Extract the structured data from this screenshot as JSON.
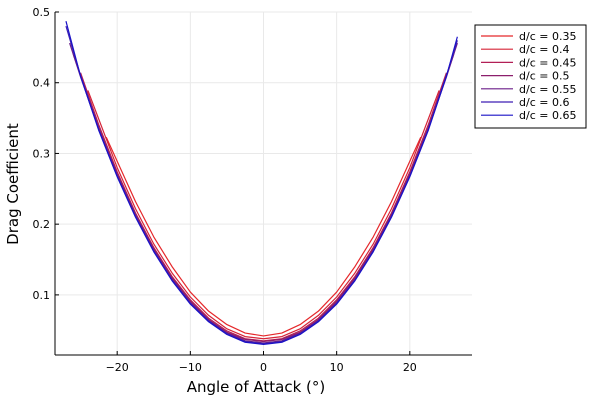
{
  "chart_data": {
    "type": "line",
    "title": "",
    "xlabel": "Angle of Attack (°)",
    "ylabel": "Drag Coefficient",
    "xlim": [
      -28.5,
      28.5
    ],
    "ylim": [
      0.015,
      0.5
    ],
    "x_ticks": [
      -20,
      -10,
      0,
      10,
      20
    ],
    "x_tick_labels": [
      "−20",
      "−10",
      "0",
      "10",
      "20"
    ],
    "y_ticks": [
      0.1,
      0.2,
      0.3,
      0.4,
      0.5
    ],
    "y_tick_labels": [
      "0.1",
      "0.2",
      "0.3",
      "0.4",
      "0.5"
    ],
    "grid": true,
    "legend_position": "outer-top-right",
    "x": [
      -27,
      -25,
      -22.5,
      -20,
      -17.5,
      -15,
      -12.5,
      -10,
      -7.5,
      -5,
      -2.5,
      0,
      2.5,
      5,
      7.5,
      10,
      12.5,
      15,
      17.5,
      20,
      22.5,
      25,
      26.5
    ],
    "series": [
      {
        "name": "d/c = 0.35",
        "color": "#e5282b",
        "x": [
          -21.5,
          -20,
          -17.5,
          -15,
          -12.5,
          -10,
          -7.5,
          -5,
          -2.5,
          0,
          2.5,
          5,
          7.5,
          10,
          12.5,
          15,
          17.5,
          20,
          21.5
        ],
        "values": [
          0.323,
          0.289,
          0.232,
          0.182,
          0.14,
          0.104,
          0.077,
          0.058,
          0.046,
          0.042,
          0.046,
          0.058,
          0.077,
          0.104,
          0.14,
          0.182,
          0.232,
          0.289,
          0.323
        ]
      },
      {
        "name": "d/c = 0.4",
        "color": "#d62437",
        "x": [
          -24,
          -22.5,
          -20,
          -17.5,
          -15,
          -12.5,
          -10,
          -7.5,
          -5,
          -2.5,
          0,
          2.5,
          5,
          7.5,
          10,
          12.5,
          15,
          17.5,
          20,
          22.5,
          24
        ],
        "values": [
          0.389,
          0.348,
          0.28,
          0.222,
          0.172,
          0.131,
          0.097,
          0.071,
          0.052,
          0.041,
          0.038,
          0.041,
          0.052,
          0.071,
          0.097,
          0.131,
          0.172,
          0.222,
          0.28,
          0.348,
          0.389
        ]
      },
      {
        "name": "d/c = 0.45",
        "color": "#b21f56",
        "x": [
          -25,
          -22.5,
          -20,
          -17.5,
          -15,
          -12.5,
          -10,
          -7.5,
          -5,
          -2.5,
          0,
          2.5,
          5,
          7.5,
          10,
          12.5,
          15,
          17.5,
          20,
          22.5,
          25
        ],
        "values": [
          0.414,
          0.34,
          0.274,
          0.216,
          0.167,
          0.126,
          0.093,
          0.067,
          0.049,
          0.038,
          0.035,
          0.038,
          0.049,
          0.067,
          0.093,
          0.126,
          0.167,
          0.216,
          0.274,
          0.34,
          0.414
        ]
      },
      {
        "name": "d/c = 0.5",
        "color": "#8c1e6c",
        "x": [
          -26,
          -25,
          -22.5,
          -20,
          -17.5,
          -15,
          -12.5,
          -10,
          -7.5,
          -5,
          -2.5,
          0,
          2.5,
          5,
          7.5,
          10,
          12.5,
          15,
          17.5,
          20,
          22.5,
          25,
          26
        ],
        "values": [
          0.44,
          0.41,
          0.336,
          0.271,
          0.214,
          0.165,
          0.124,
          0.091,
          0.065,
          0.047,
          0.037,
          0.034,
          0.037,
          0.047,
          0.065,
          0.091,
          0.124,
          0.165,
          0.214,
          0.271,
          0.336,
          0.41,
          0.44
        ]
      },
      {
        "name": "d/c = 0.55",
        "color": "#6a1d88",
        "x": [
          -26.5,
          -25,
          -22.5,
          -20,
          -17.5,
          -15,
          -12.5,
          -10,
          -7.5,
          -5,
          -2.5,
          0,
          2.5,
          5,
          7.5,
          10,
          12.5,
          15,
          17.5,
          20,
          22.5,
          25,
          26.5
        ],
        "values": [
          0.456,
          0.408,
          0.334,
          0.269,
          0.212,
          0.163,
          0.122,
          0.089,
          0.064,
          0.046,
          0.035,
          0.032,
          0.035,
          0.046,
          0.064,
          0.089,
          0.122,
          0.163,
          0.212,
          0.269,
          0.334,
          0.408,
          0.456
        ]
      },
      {
        "name": "d/c = 0.6",
        "color": "#3d1eb4",
        "x": [
          -27,
          -25,
          -22.5,
          -20,
          -17.5,
          -15,
          -12.5,
          -10,
          -7.5,
          -5,
          -2.5,
          0,
          2.5,
          5,
          7.5,
          10,
          12.5,
          15,
          17.5,
          20,
          22.5,
          25,
          26.5
        ],
        "values": [
          0.48,
          0.41,
          0.333,
          0.268,
          0.211,
          0.162,
          0.121,
          0.088,
          0.063,
          0.045,
          0.034,
          0.031,
          0.034,
          0.045,
          0.063,
          0.088,
          0.121,
          0.162,
          0.211,
          0.268,
          0.333,
          0.41,
          0.46
        ]
      },
      {
        "name": "d/c = 0.65",
        "color": "#1a12c6",
        "x": [
          -27,
          -25,
          -22.5,
          -20,
          -17.5,
          -15,
          -12.5,
          -10,
          -7.5,
          -5,
          -2.5,
          0,
          2.5,
          5,
          7.5,
          10,
          12.5,
          15,
          17.5,
          20,
          22.5,
          25,
          26.5
        ],
        "values": [
          0.487,
          0.409,
          0.332,
          0.267,
          0.21,
          0.161,
          0.12,
          0.087,
          0.062,
          0.044,
          0.033,
          0.03,
          0.033,
          0.044,
          0.062,
          0.087,
          0.12,
          0.161,
          0.21,
          0.267,
          0.332,
          0.409,
          0.465
        ]
      }
    ]
  }
}
